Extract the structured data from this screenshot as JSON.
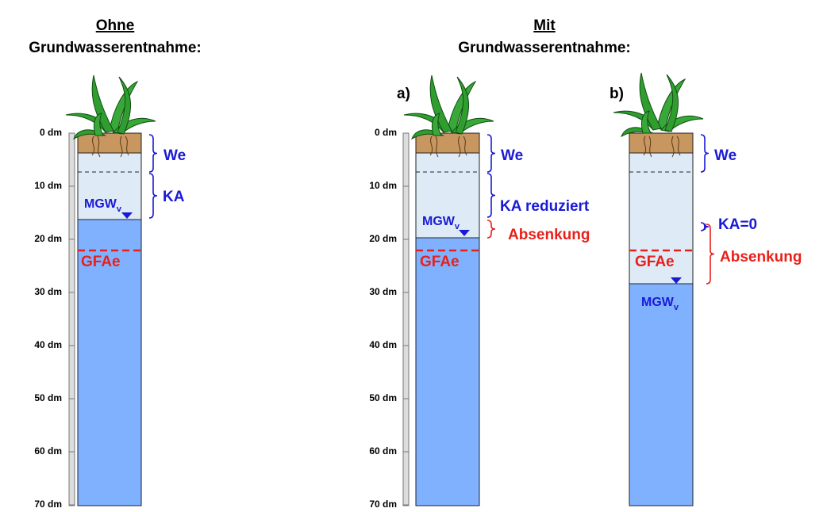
{
  "columns": [
    {
      "heading": "Ohne",
      "subheading": "Grundwasserentnahme:"
    },
    {
      "heading": "Mit",
      "subheading": "Grundwasserentnahme:"
    }
  ],
  "scales": [
    {
      "labels": [
        "0 dm",
        "10 dm",
        "20 dm",
        "30 dm",
        "40 dm",
        "50 dm",
        "60 dm",
        "70 dm"
      ]
    },
    {
      "labels": [
        "0 dm",
        "10 dm",
        "20 dm",
        "30 dm",
        "40 dm",
        "50 dm",
        "60 dm",
        "70 dm"
      ]
    }
  ],
  "profiles": [
    {
      "we": "We",
      "ka": "KA",
      "mgw": "MGW",
      "mgw_sub": "v",
      "gfae": "GFAe"
    },
    {
      "tag": "a)",
      "we": "We",
      "ka": "KA reduziert",
      "absenkung": "Absenkung",
      "mgw": "MGW",
      "mgw_sub": "v",
      "gfae": "GFAe"
    },
    {
      "tag": "b)",
      "we": "We",
      "ka": "KA=0",
      "absenkung": "Absenkung",
      "mgw": "MGW",
      "mgw_sub": "v",
      "gfae": "GFAe"
    }
  ]
}
